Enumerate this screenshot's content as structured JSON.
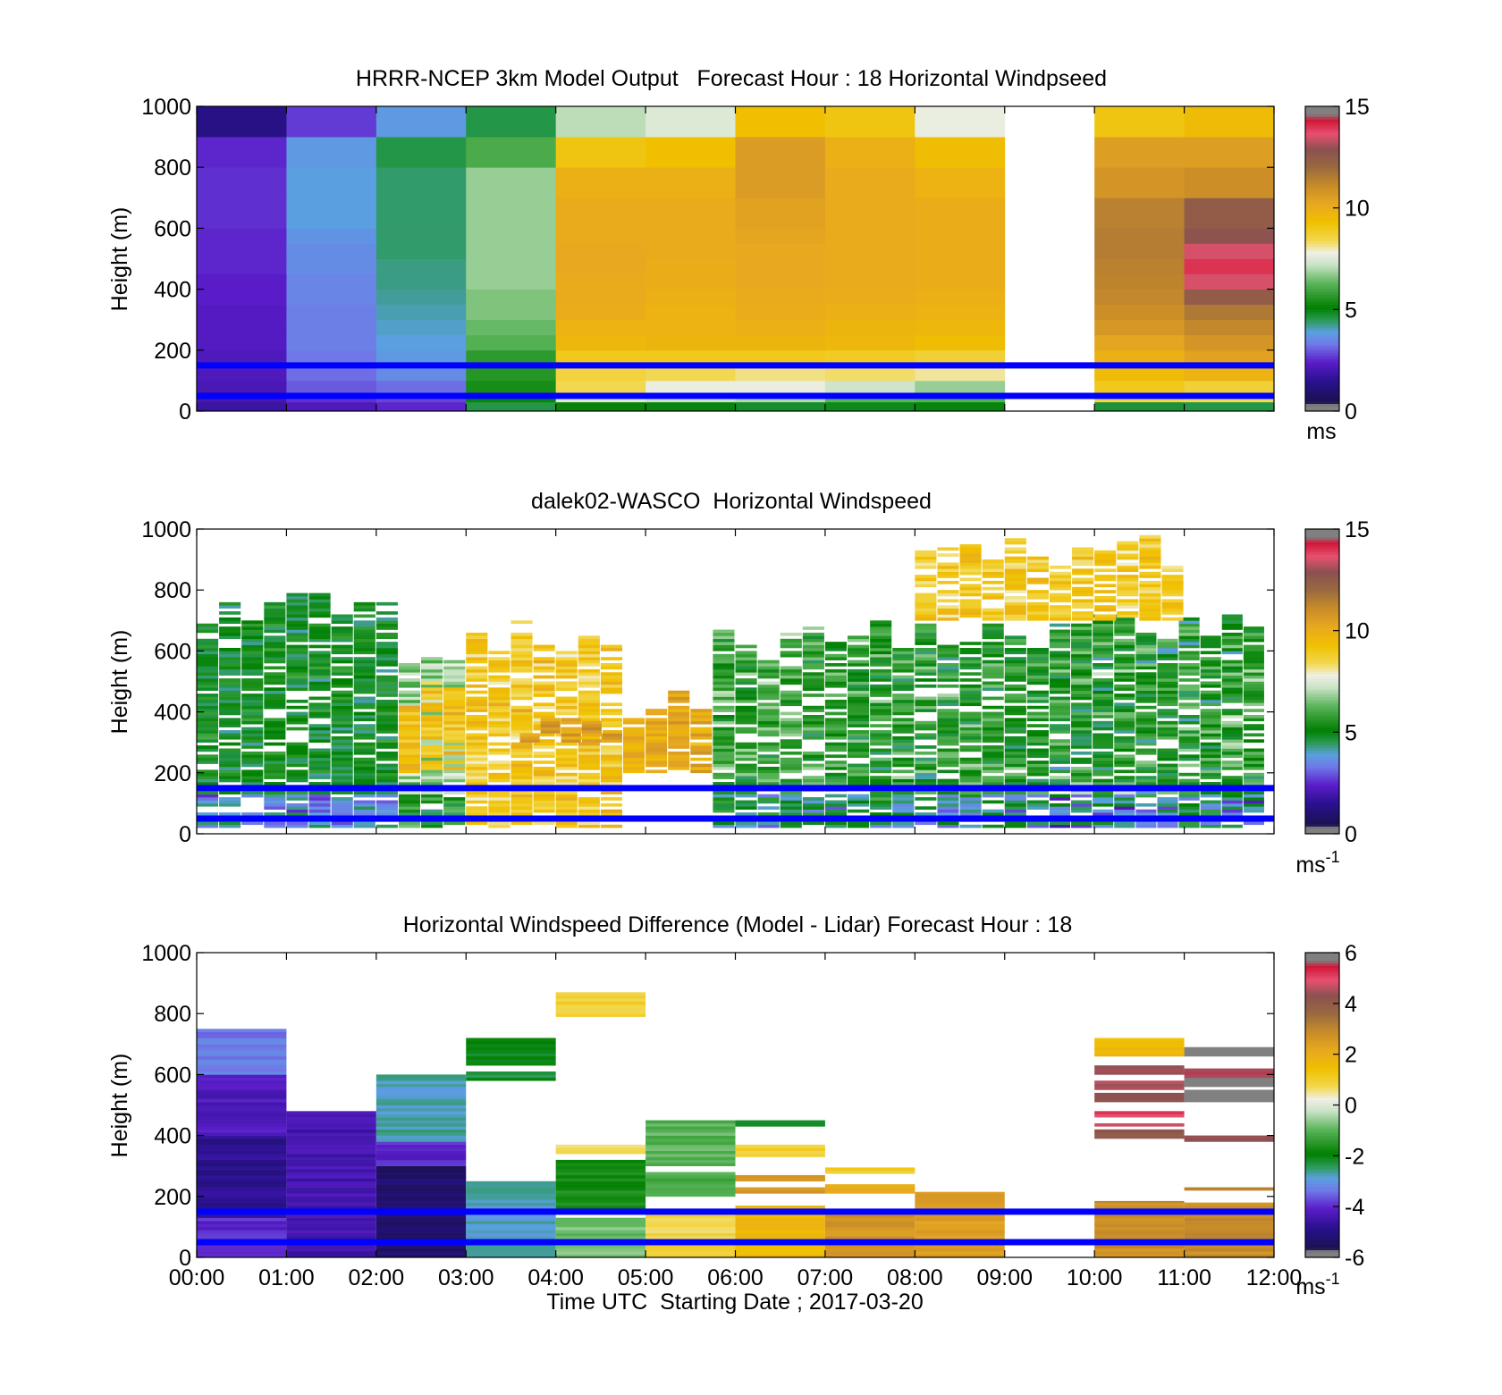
{
  "chart_data": [
    {
      "type": "heatmap",
      "title": "HRRR-NCEP 3km Model Output   Forecast Hour : 18 Horizontal Windpseed",
      "ylabel": "Height (m)",
      "xlabel": "",
      "ylim": [
        0,
        1000
      ],
      "yticks": [
        "0",
        "200",
        "400",
        "600",
        "800",
        "1000"
      ],
      "xlim": [
        0,
        12
      ],
      "colorbar": {
        "min": 0,
        "max": 15,
        "ticks": [
          "0",
          "5",
          "10",
          "15"
        ],
        "unit": "ms"
      },
      "x_edges": [
        0,
        1,
        2,
        3,
        4,
        5,
        6,
        7,
        8,
        9,
        10,
        11,
        12
      ],
      "y_edges": [
        0,
        30,
        60,
        100,
        150,
        200,
        250,
        300,
        350,
        400,
        450,
        500,
        550,
        600,
        700,
        800,
        900,
        1000
      ],
      "values": [
        [
          1.8,
          2.2,
          2.5,
          4.6,
          5.2,
          5.0,
          4.8,
          4.9,
          5.0,
          null,
          4.7,
          4.6
        ],
        [
          2.0,
          2.6,
          2.8,
          5.0,
          7.5,
          7.2,
          7.0,
          6.3,
          6.2,
          null,
          8.5,
          8.4
        ],
        [
          2.1,
          3.0,
          3.2,
          5.4,
          8.4,
          7.7,
          7.7,
          7.3,
          6.8,
          null,
          9.0,
          8.7
        ],
        [
          2.2,
          3.2,
          3.6,
          5.6,
          8.6,
          8.4,
          8.2,
          8.3,
          8.1,
          null,
          9.5,
          9.8
        ],
        [
          2.2,
          3.3,
          3.8,
          5.7,
          9.0,
          9.0,
          9.0,
          8.9,
          8.7,
          null,
          9.9,
          10.4
        ],
        [
          2.3,
          3.4,
          3.9,
          6.2,
          9.6,
          9.7,
          9.7,
          9.6,
          9.4,
          null,
          10.3,
          10.8
        ],
        [
          2.3,
          3.4,
          4.0,
          6.4,
          9.8,
          9.8,
          9.9,
          9.7,
          9.6,
          null,
          10.7,
          11.2
        ],
        [
          2.3,
          3.4,
          4.1,
          6.6,
          10.0,
          9.8,
          10.0,
          9.9,
          9.8,
          null,
          11.0,
          11.6
        ],
        [
          2.4,
          3.5,
          4.2,
          6.6,
          10.1,
          9.9,
          10.1,
          10.0,
          9.9,
          null,
          11.2,
          12.5
        ],
        [
          2.4,
          3.5,
          4.3,
          6.8,
          10.1,
          10.0,
          10.2,
          10.1,
          10.0,
          null,
          11.3,
          13.5
        ],
        [
          2.5,
          3.6,
          4.3,
          6.8,
          10.2,
          10.0,
          10.2,
          10.1,
          10.0,
          null,
          11.4,
          14.0
        ],
        [
          2.5,
          3.6,
          4.4,
          6.8,
          10.2,
          10.1,
          10.2,
          10.1,
          10.0,
          null,
          11.5,
          13.5
        ],
        [
          2.5,
          3.7,
          4.4,
          6.8,
          10.1,
          10.1,
          10.3,
          10.1,
          10.0,
          null,
          11.5,
          12.8
        ],
        [
          2.6,
          3.9,
          4.4,
          6.8,
          10.1,
          10.1,
          10.4,
          10.1,
          10.0,
          null,
          11.4,
          12.5
        ],
        [
          2.6,
          3.9,
          4.4,
          6.8,
          9.9,
          9.9,
          10.6,
          10.1,
          9.8,
          null,
          10.8,
          11.0
        ],
        [
          2.5,
          3.8,
          4.6,
          6.1,
          9.1,
          9.3,
          10.6,
          9.9,
          9.4,
          null,
          10.5,
          10.5
        ],
        [
          1.3,
          2.7,
          3.8,
          4.6,
          7.1,
          7.5,
          9.3,
          9.1,
          7.7,
          null,
          9.1,
          9.5
        ]
      ],
      "reference_lines": [
        {
          "y": 50,
          "color": "#0000ff"
        },
        {
          "y": 150,
          "color": "#0000ff"
        }
      ]
    },
    {
      "type": "heatmap",
      "title": "dalek02-WASCO  Horizontal Windspeed",
      "ylabel": "Height (m)",
      "xlabel": "",
      "ylim": [
        0,
        1000
      ],
      "yticks": [
        "0",
        "200",
        "400",
        "600",
        "800",
        "1000"
      ],
      "xlim": [
        0,
        12
      ],
      "colorbar": {
        "min": 0,
        "max": 15,
        "ticks": [
          "0",
          "5",
          "10",
          "15"
        ],
        "unit": "ms",
        "unit_exp": "-1"
      },
      "layers": [
        {
          "x0": 0.0,
          "x1": 2.25,
          "h0": 20,
          "h1": 800,
          "v0": 4.8,
          "v1": 5.3
        },
        {
          "x0": 2.25,
          "x1": 3.0,
          "h0": 20,
          "h1": 660,
          "v0": 6.5,
          "v1": 7.2
        },
        {
          "x0": 2.25,
          "x1": 3.0,
          "h0": 200,
          "h1": 500,
          "v0": 9.0,
          "v1": 9.6
        },
        {
          "x0": 3.0,
          "x1": 4.75,
          "h0": 20,
          "h1": 700,
          "v0": 8.5,
          "v1": 9.6
        },
        {
          "x0": 3.6,
          "x1": 4.75,
          "h0": 300,
          "h1": 380,
          "v0": 10.0,
          "v1": 10.6
        },
        {
          "x0": 4.75,
          "x1": 5.75,
          "h0": 200,
          "h1": 480,
          "v0": 9.8,
          "v1": 10.2
        },
        {
          "x0": 5.75,
          "x1": 7.25,
          "h0": 20,
          "h1": 690,
          "v0": 5.0,
          "v1": 6.6
        },
        {
          "x0": 7.25,
          "x1": 9.5,
          "h0": 20,
          "h1": 700,
          "v0": 4.7,
          "v1": 6.4
        },
        {
          "x0": 9.5,
          "x1": 11.9,
          "h0": 20,
          "h1": 730,
          "v0": 4.5,
          "v1": 6.6
        },
        {
          "x0": 8.0,
          "x1": 11.0,
          "h0": 700,
          "h1": 980,
          "v0": 8.6,
          "v1": 9.3
        }
      ],
      "reference_lines": [
        {
          "y": 50,
          "color": "#0000ff"
        },
        {
          "y": 150,
          "color": "#0000ff"
        }
      ]
    },
    {
      "type": "heatmap",
      "title": "Horizontal Windspeed Difference (Model - Lidar) Forecast Hour : 18",
      "ylabel": "Height (m)",
      "xlabel": "Time UTC  Starting Date ; 2017-03-20",
      "ylim": [
        0,
        1000
      ],
      "yticks": [
        "0",
        "200",
        "400",
        "600",
        "800",
        "1000"
      ],
      "xticks": [
        "00:00",
        "01:00",
        "02:00",
        "03:00",
        "04:00",
        "05:00",
        "06:00",
        "07:00",
        "08:00",
        "09:00",
        "10:00",
        "11:00",
        "12:00"
      ],
      "xlim": [
        0,
        12
      ],
      "colorbar": {
        "min": -6,
        "max": 6,
        "ticks": [
          "-6",
          "-4",
          "-2",
          "0",
          "2",
          "4",
          "6"
        ],
        "unit": "ms",
        "unit_exp": "-1"
      },
      "segments": [
        {
          "x0": 0,
          "x1": 1,
          "h0": 0,
          "h1": 130,
          "v": -4.0
        },
        {
          "x0": 0,
          "x1": 1,
          "h0": 130,
          "h1": 400,
          "v": -4.8
        },
        {
          "x0": 0,
          "x1": 1,
          "h0": 400,
          "h1": 600,
          "v": -4.2
        },
        {
          "x0": 0,
          "x1": 1,
          "h0": 600,
          "h1": 750,
          "v": -3.3
        },
        {
          "x0": 1,
          "x1": 2,
          "h0": 0,
          "h1": 480,
          "v": -4.4
        },
        {
          "x0": 2,
          "x1": 3,
          "h0": 0,
          "h1": 300,
          "v": -5.3
        },
        {
          "x0": 2,
          "x1": 3,
          "h0": 300,
          "h1": 380,
          "v": -4.0
        },
        {
          "x0": 2,
          "x1": 3,
          "h0": 380,
          "h1": 600,
          "v": -2.7
        },
        {
          "x0": 3,
          "x1": 4,
          "h0": 0,
          "h1": 250,
          "v": -2.8
        },
        {
          "x0": 3,
          "x1": 4,
          "h0": 580,
          "h1": 610,
          "v": -2.2
        },
        {
          "x0": 3,
          "x1": 4,
          "h0": 630,
          "h1": 720,
          "v": -2.0
        },
        {
          "x0": 4,
          "x1": 5,
          "h0": 0,
          "h1": 130,
          "v": -0.8
        },
        {
          "x0": 4,
          "x1": 5,
          "h0": 160,
          "h1": 320,
          "v": -1.7
        },
        {
          "x0": 4,
          "x1": 5,
          "h0": 340,
          "h1": 370,
          "v": 0.8
        },
        {
          "x0": 4,
          "x1": 5,
          "h0": 790,
          "h1": 870,
          "v": 1.0
        },
        {
          "x0": 5,
          "x1": 6,
          "h0": 0,
          "h1": 160,
          "v": 0.8
        },
        {
          "x0": 5,
          "x1": 6,
          "h0": 200,
          "h1": 280,
          "v": -1.2
        },
        {
          "x0": 5,
          "x1": 6,
          "h0": 300,
          "h1": 450,
          "v": -1.0
        },
        {
          "x0": 6,
          "x1": 7,
          "h0": 0,
          "h1": 170,
          "v": 1.6
        },
        {
          "x0": 6,
          "x1": 7,
          "h0": 210,
          "h1": 230,
          "v": 2.5
        },
        {
          "x0": 6,
          "x1": 7,
          "h0": 250,
          "h1": 270,
          "v": 2.5
        },
        {
          "x0": 6,
          "x1": 7,
          "h0": 330,
          "h1": 370,
          "v": 1.0
        },
        {
          "x0": 6,
          "x1": 7,
          "h0": 430,
          "h1": 450,
          "v": -2.0
        },
        {
          "x0": 7,
          "x1": 8,
          "h0": 0,
          "h1": 150,
          "v": 2.6
        },
        {
          "x0": 7,
          "x1": 8,
          "h0": 210,
          "h1": 240,
          "v": 2.0
        },
        {
          "x0": 7,
          "x1": 8,
          "h0": 275,
          "h1": 295,
          "v": 1.0
        },
        {
          "x0": 8,
          "x1": 9,
          "h0": 0,
          "h1": 215,
          "v": 2.4
        },
        {
          "x0": 10,
          "x1": 11,
          "h0": 0,
          "h1": 185,
          "v": 2.8
        },
        {
          "x0": 10,
          "x1": 11,
          "h0": 390,
          "h1": 420,
          "v": 4.2
        },
        {
          "x0": 10,
          "x1": 11,
          "h0": 430,
          "h1": 440,
          "v": 4.5
        },
        {
          "x0": 10,
          "x1": 11,
          "h0": 460,
          "h1": 480,
          "v": 5.0
        },
        {
          "x0": 10,
          "x1": 11,
          "h0": 510,
          "h1": 540,
          "v": 4.3
        },
        {
          "x0": 10,
          "x1": 11,
          "h0": 550,
          "h1": 580,
          "v": 4.5
        },
        {
          "x0": 10,
          "x1": 11,
          "h0": 600,
          "h1": 630,
          "v": 4.4
        },
        {
          "x0": 10,
          "x1": 11,
          "h0": 660,
          "h1": 720,
          "v": 1.6
        },
        {
          "x0": 11,
          "x1": 12,
          "h0": 0,
          "h1": 180,
          "v": 2.9
        },
        {
          "x0": 11,
          "x1": 12,
          "h0": 220,
          "h1": 230,
          "v": 3.0
        },
        {
          "x0": 11,
          "x1": 12,
          "h0": 380,
          "h1": 400,
          "v": 4.2
        },
        {
          "x0": 11,
          "x1": 12,
          "h0": 510,
          "h1": 550,
          "v": 6.0
        },
        {
          "x0": 11,
          "x1": 12,
          "h0": 560,
          "h1": 590,
          "v": 6.0
        },
        {
          "x0": 11,
          "x1": 12,
          "h0": 590,
          "h1": 620,
          "v": 5.6
        },
        {
          "x0": 11,
          "x1": 12,
          "h0": 660,
          "h1": 690,
          "v": 6.0
        }
      ],
      "reference_lines": [
        {
          "y": 50,
          "color": "#0000ff"
        },
        {
          "y": 150,
          "color": "#0000ff"
        }
      ]
    }
  ]
}
